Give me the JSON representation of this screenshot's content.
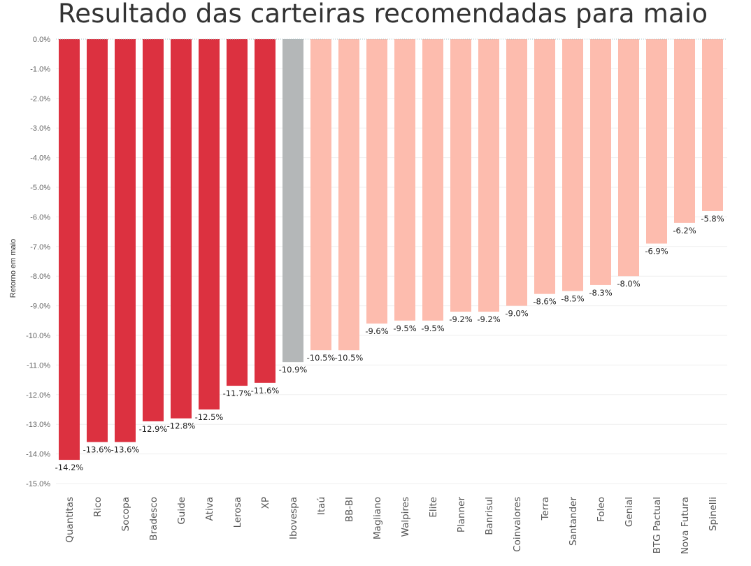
{
  "chart_data": {
    "type": "bar",
    "title": "Resultado das carteiras recomendadas para maio",
    "xlabel": "",
    "ylabel": "Retorno em maio",
    "ylim": [
      -15,
      0
    ],
    "yticks": [
      "0.0%",
      "-1.0%",
      "-2.0%",
      "-3.0%",
      "-4.0%",
      "-5.0%",
      "-6.0%",
      "-7.0%",
      "-8.0%",
      "-9.0%",
      "-10.0%",
      "-11.0%",
      "-12.0%",
      "-13.0%",
      "-14.0%",
      "-15.0%"
    ],
    "grid": true,
    "colors": {
      "bottom": "#dc3140",
      "benchmark": "#b4b7b8",
      "other": "#fdbcae",
      "grid": "#efefef",
      "zero_line": "#a9c4c8"
    },
    "bars": [
      {
        "category": "Quantitas",
        "value": -14.2,
        "label": "-14.2%",
        "group": "bottom"
      },
      {
        "category": "Rico",
        "value": -13.6,
        "label": "-13.6%",
        "group": "bottom"
      },
      {
        "category": "Socopa",
        "value": -13.6,
        "label": "-13.6%",
        "group": "bottom"
      },
      {
        "category": "Bradesco",
        "value": -12.9,
        "label": "-12.9%",
        "group": "bottom"
      },
      {
        "category": "Guide",
        "value": -12.8,
        "label": "-12.8%",
        "group": "bottom"
      },
      {
        "category": "Ativa",
        "value": -12.5,
        "label": "-12.5%",
        "group": "bottom"
      },
      {
        "category": "Lerosa",
        "value": -11.7,
        "label": "-11.7%",
        "group": "bottom"
      },
      {
        "category": "XP",
        "value": -11.6,
        "label": "-11.6%",
        "group": "bottom"
      },
      {
        "category": "Ibovespa",
        "value": -10.9,
        "label": "-10.9%",
        "group": "benchmark"
      },
      {
        "category": "Itaú",
        "value": -10.5,
        "label": "-10.5%",
        "group": "other"
      },
      {
        "category": "BB-BI",
        "value": -10.5,
        "label": "-10.5%",
        "group": "other"
      },
      {
        "category": "Magliano",
        "value": -9.6,
        "label": "-9.6%",
        "group": "other"
      },
      {
        "category": "Walpires",
        "value": -9.5,
        "label": "-9.5%",
        "group": "other"
      },
      {
        "category": "Elite",
        "value": -9.5,
        "label": "-9.5%",
        "group": "other"
      },
      {
        "category": "Planner",
        "value": -9.2,
        "label": "-9.2%",
        "group": "other"
      },
      {
        "category": "Banrisul",
        "value": -9.2,
        "label": "-9.2%",
        "group": "other"
      },
      {
        "category": "Coinvalores",
        "value": -9.0,
        "label": "-9.0%",
        "group": "other"
      },
      {
        "category": "Terra",
        "value": -8.6,
        "label": "-8.6%",
        "group": "other"
      },
      {
        "category": "Santander",
        "value": -8.5,
        "label": "-8.5%",
        "group": "other"
      },
      {
        "category": "Foleo",
        "value": -8.3,
        "label": "-8.3%",
        "group": "other"
      },
      {
        "category": "Genial",
        "value": -8.0,
        "label": "-8.0%",
        "group": "other"
      },
      {
        "category": "BTG Pactual",
        "value": -6.9,
        "label": "-6.9%",
        "group": "other"
      },
      {
        "category": "Nova Futura",
        "value": -6.2,
        "label": "-6.2%",
        "group": "other"
      },
      {
        "category": "Spinelli",
        "value": -5.8,
        "label": "-5.8%",
        "group": "other"
      }
    ]
  }
}
